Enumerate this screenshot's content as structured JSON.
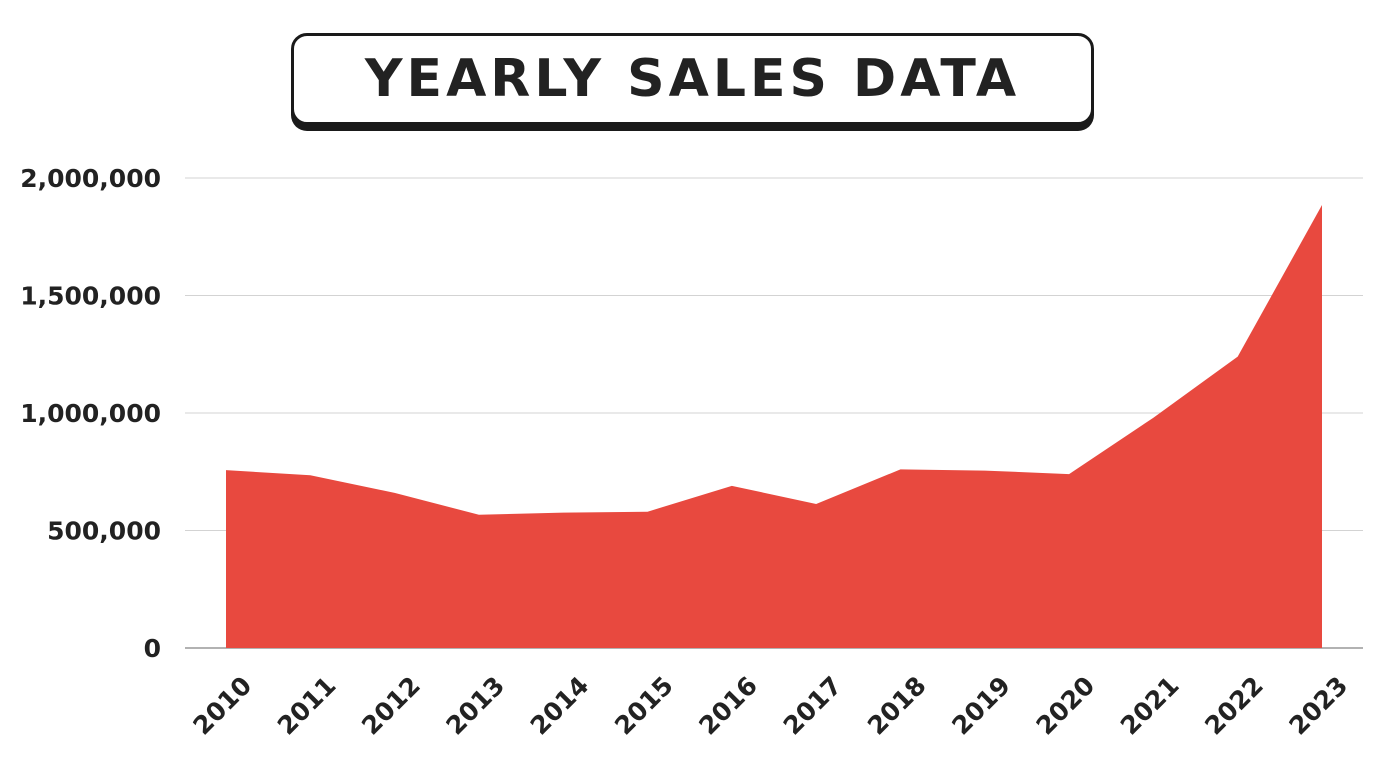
{
  "chart_data": {
    "type": "area",
    "title": "YEARLY SALES DATA",
    "xlabel": "",
    "ylabel": "",
    "categories": [
      "2010",
      "2011",
      "2012",
      "2013",
      "2014",
      "2015",
      "2016",
      "2017",
      "2018",
      "2019",
      "2020",
      "2021",
      "2022",
      "2023"
    ],
    "values": [
      757000,
      735000,
      660000,
      567000,
      576000,
      580000,
      690000,
      613000,
      760000,
      755000,
      740000,
      980000,
      1240000,
      1885000
    ],
    "ylim": [
      0,
      2000000
    ],
    "y_ticks": [
      0,
      500000,
      1000000,
      1500000,
      2000000
    ],
    "y_tick_labels": [
      "0",
      "500,000",
      "1,000,000",
      "1,500,000",
      "2,000,000"
    ],
    "grid": true,
    "legend": "none",
    "colors": {
      "area": "#e8493f",
      "grid": "#d3d3d3",
      "axis": "#999999"
    }
  }
}
